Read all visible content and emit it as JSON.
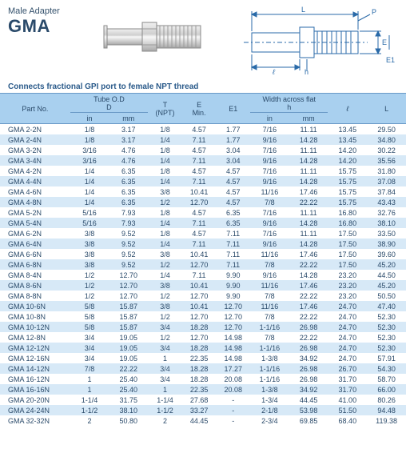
{
  "header": {
    "title_small": "Male Adapter",
    "title_big": "GMA"
  },
  "subtitle": "Connects fractional GPI port to female NPT thread",
  "table": {
    "header_row1": {
      "part": "Part No.",
      "tube": "Tube O.D",
      "d_sub": "D",
      "t": "T",
      "npt": "(NPT)",
      "e": "E",
      "min": "Min.",
      "e1": "E1",
      "waf": "Width across flat",
      "h_sub": "h",
      "l_ital": "ℓ",
      "L": "L"
    },
    "header_row2": {
      "in": "in",
      "mm": "mm",
      "in2": "in",
      "mm2": "mm"
    },
    "rows": [
      {
        "p": "GMA 2-2N",
        "din": "1/8",
        "dmm": "3.17",
        "t": "1/8",
        "e": "4.57",
        "e1": "1.77",
        "hin": "7/16",
        "hmm": "11.11",
        "l": "13.45",
        "L": "29.50"
      },
      {
        "p": "GMA 2-4N",
        "din": "1/8",
        "dmm": "3.17",
        "t": "1/4",
        "e": "7.11",
        "e1": "1.77",
        "hin": "9/16",
        "hmm": "14.28",
        "l": "13.45",
        "L": "34.80"
      },
      {
        "p": "GMA 3-2N",
        "din": "3/16",
        "dmm": "4.76",
        "t": "1/8",
        "e": "4.57",
        "e1": "3.04",
        "hin": "7/16",
        "hmm": "11.11",
        "l": "14.20",
        "L": "30.22"
      },
      {
        "p": "GMA 3-4N",
        "din": "3/16",
        "dmm": "4.76",
        "t": "1/4",
        "e": "7.11",
        "e1": "3.04",
        "hin": "9/16",
        "hmm": "14.28",
        "l": "14.20",
        "L": "35.56"
      },
      {
        "p": "GMA 4-2N",
        "din": "1/4",
        "dmm": "6.35",
        "t": "1/8",
        "e": "4.57",
        "e1": "4.57",
        "hin": "7/16",
        "hmm": "11.11",
        "l": "15.75",
        "L": "31.80"
      },
      {
        "p": "GMA 4-4N",
        "din": "1/4",
        "dmm": "6.35",
        "t": "1/4",
        "e": "7.11",
        "e1": "4.57",
        "hin": "9/16",
        "hmm": "14.28",
        "l": "15.75",
        "L": "37.08"
      },
      {
        "p": "GMA 4-6N",
        "din": "1/4",
        "dmm": "6.35",
        "t": "3/8",
        "e": "10.41",
        "e1": "4.57",
        "hin": "11/16",
        "hmm": "17.46",
        "l": "15.75",
        "L": "37.84"
      },
      {
        "p": "GMA 4-8N",
        "din": "1/4",
        "dmm": "6.35",
        "t": "1/2",
        "e": "12.70",
        "e1": "4.57",
        "hin": "7/8",
        "hmm": "22.22",
        "l": "15.75",
        "L": "43.43"
      },
      {
        "p": "GMA 5-2N",
        "din": "5/16",
        "dmm": "7.93",
        "t": "1/8",
        "e": "4.57",
        "e1": "6.35",
        "hin": "7/16",
        "hmm": "11.11",
        "l": "16.80",
        "L": "32.76"
      },
      {
        "p": "GMA 5-4N",
        "din": "5/16",
        "dmm": "7.93",
        "t": "1/4",
        "e": "7.11",
        "e1": "6.35",
        "hin": "9/16",
        "hmm": "14.28",
        "l": "16.80",
        "L": "38.10"
      },
      {
        "p": "GMA 6-2N",
        "din": "3/8",
        "dmm": "9.52",
        "t": "1/8",
        "e": "4.57",
        "e1": "7.11",
        "hin": "7/16",
        "hmm": "11.11",
        "l": "17.50",
        "L": "33.50"
      },
      {
        "p": "GMA 6-4N",
        "din": "3/8",
        "dmm": "9.52",
        "t": "1/4",
        "e": "7.11",
        "e1": "7.11",
        "hin": "9/16",
        "hmm": "14.28",
        "l": "17.50",
        "L": "38.90"
      },
      {
        "p": "GMA 6-6N",
        "din": "3/8",
        "dmm": "9.52",
        "t": "3/8",
        "e": "10.41",
        "e1": "7.11",
        "hin": "11/16",
        "hmm": "17.46",
        "l": "17.50",
        "L": "39.60"
      },
      {
        "p": "GMA 6-8N",
        "din": "3/8",
        "dmm": "9.52",
        "t": "1/2",
        "e": "12.70",
        "e1": "7.11",
        "hin": "7/8",
        "hmm": "22.22",
        "l": "17.50",
        "L": "45.20"
      },
      {
        "p": "GMA 8-4N",
        "din": "1/2",
        "dmm": "12.70",
        "t": "1/4",
        "e": "7.11",
        "e1": "9.90",
        "hin": "9/16",
        "hmm": "14.28",
        "l": "23.20",
        "L": "44.50"
      },
      {
        "p": "GMA 8-6N",
        "din": "1/2",
        "dmm": "12.70",
        "t": "3/8",
        "e": "10.41",
        "e1": "9.90",
        "hin": "11/16",
        "hmm": "17.46",
        "l": "23.20",
        "L": "45.20"
      },
      {
        "p": "GMA 8-8N",
        "din": "1/2",
        "dmm": "12.70",
        "t": "1/2",
        "e": "12.70",
        "e1": "9.90",
        "hin": "7/8",
        "hmm": "22.22",
        "l": "23.20",
        "L": "50.50"
      },
      {
        "p": "GMA 10-6N",
        "din": "5/8",
        "dmm": "15.87",
        "t": "3/8",
        "e": "10.41",
        "e1": "12.70",
        "hin": "11/16",
        "hmm": "17.46",
        "l": "24.70",
        "L": "47.40"
      },
      {
        "p": "GMA 10-8N",
        "din": "5/8",
        "dmm": "15.87",
        "t": "1/2",
        "e": "12.70",
        "e1": "12.70",
        "hin": "7/8",
        "hmm": "22.22",
        "l": "24.70",
        "L": "52.30"
      },
      {
        "p": "GMA 10-12N",
        "din": "5/8",
        "dmm": "15.87",
        "t": "3/4",
        "e": "18.28",
        "e1": "12.70",
        "hin": "1-1/16",
        "hmm": "26.98",
        "l": "24.70",
        "L": "52.30"
      },
      {
        "p": "GMA 12-8N",
        "din": "3/4",
        "dmm": "19.05",
        "t": "1/2",
        "e": "12.70",
        "e1": "14.98",
        "hin": "7/8",
        "hmm": "22.22",
        "l": "24.70",
        "L": "52.30"
      },
      {
        "p": "GMA 12-12N",
        "din": "3/4",
        "dmm": "19.05",
        "t": "3/4",
        "e": "18.28",
        "e1": "14.98",
        "hin": "1-1/16",
        "hmm": "26.98",
        "l": "24.70",
        "L": "52.30"
      },
      {
        "p": "GMA 12-16N",
        "din": "3/4",
        "dmm": "19.05",
        "t": "1",
        "e": "22.35",
        "e1": "14.98",
        "hin": "1-3/8",
        "hmm": "34.92",
        "l": "24.70",
        "L": "57.91"
      },
      {
        "p": "GMA 14-12N",
        "din": "7/8",
        "dmm": "22.22",
        "t": "3/4",
        "e": "18.28",
        "e1": "17.27",
        "hin": "1-1/16",
        "hmm": "26.98",
        "l": "26.70",
        "L": "54.30"
      },
      {
        "p": "GMA 16-12N",
        "din": "1",
        "dmm": "25.40",
        "t": "3/4",
        "e": "18.28",
        "e1": "20.08",
        "hin": "1-1/16",
        "hmm": "26.98",
        "l": "31.70",
        "L": "58.70"
      },
      {
        "p": "GMA 16-16N",
        "din": "1",
        "dmm": "25.40",
        "t": "1",
        "e": "22.35",
        "e1": "20.08",
        "hin": "1-3/8",
        "hmm": "34.92",
        "l": "31.70",
        "L": "66.00"
      },
      {
        "p": "GMA 20-20N",
        "din": "1-1/4",
        "dmm": "31.75",
        "t": "1-1/4",
        "e": "27.68",
        "e1": "-",
        "hin": "1-3/4",
        "hmm": "44.45",
        "l": "41.00",
        "L": "80.26"
      },
      {
        "p": "GMA 24-24N",
        "din": "1-1/2",
        "dmm": "38.10",
        "t": "1-1/2",
        "e": "33.27",
        "e1": "-",
        "hin": "2-1/8",
        "hmm": "53.98",
        "l": "51.50",
        "L": "94.48"
      },
      {
        "p": "GMA 32-32N",
        "din": "2",
        "dmm": "50.80",
        "t": "2",
        "e": "44.45",
        "e1": "-",
        "hin": "2-3/4",
        "hmm": "69.85",
        "l": "68.40",
        "L": "119.38"
      }
    ]
  },
  "diagram": {
    "labels": {
      "L": "L",
      "P": "P",
      "l": "ℓ",
      "E": "E",
      "E1": "E1",
      "h": "h"
    }
  }
}
